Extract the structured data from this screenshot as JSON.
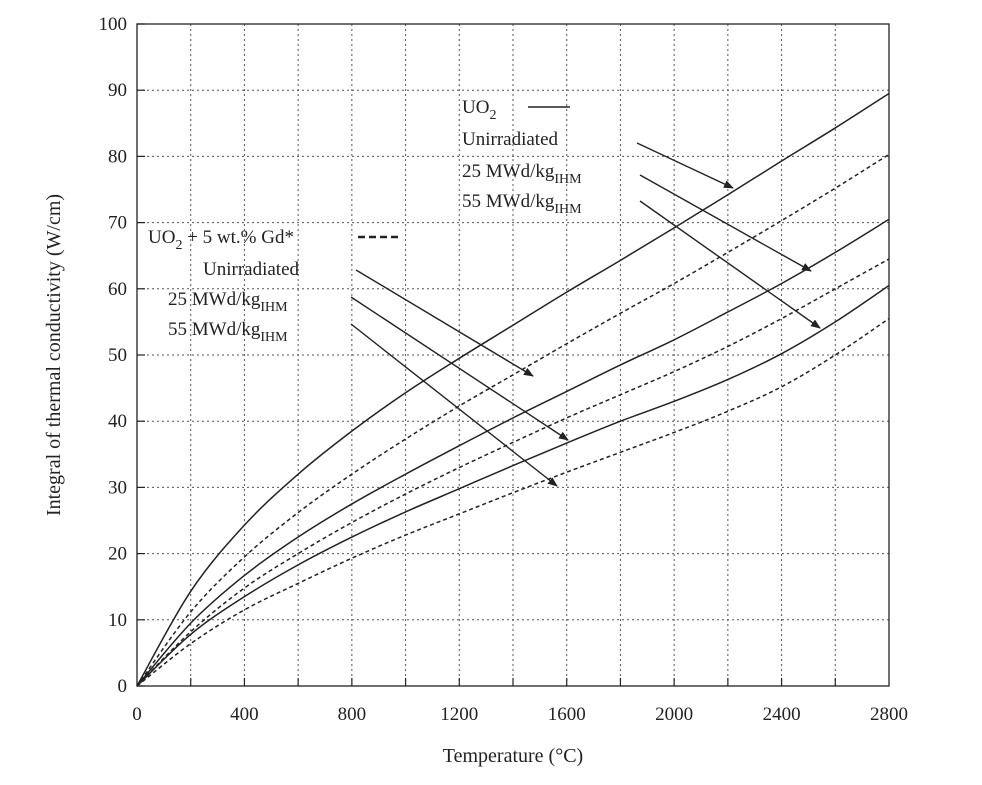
{
  "chart_data": {
    "type": "line",
    "xlabel": "Temperature (°C)",
    "ylabel": "Integral of thermal conductivity  (W/cm)",
    "xlim": [
      0,
      2800
    ],
    "ylim": [
      0,
      100
    ],
    "xticks": [
      0,
      400,
      800,
      1200,
      1600,
      2000,
      2400,
      2800
    ],
    "yticks": [
      0,
      10,
      20,
      30,
      40,
      50,
      60,
      70,
      80,
      90,
      100
    ],
    "grid": true,
    "x": [
      0,
      200,
      400,
      600,
      800,
      1000,
      1200,
      1400,
      1600,
      1800,
      2000,
      2200,
      2400,
      2600,
      2800
    ],
    "series": [
      {
        "values": [
          0,
          14.3,
          24.3,
          32.0,
          38.5,
          44.3,
          49.5,
          54.5,
          59.5,
          64.3,
          69.2,
          74.2,
          79.3,
          84.3,
          89.5
        ],
        "style": "solid"
      },
      {
        "values": [
          0,
          9.5,
          16.7,
          22.5,
          27.5,
          32.0,
          36.3,
          40.5,
          44.5,
          48.5,
          52.3,
          56.5,
          60.8,
          65.5,
          70.5
        ],
        "style": "solid"
      },
      {
        "values": [
          0,
          7.8,
          13.5,
          18.3,
          22.5,
          26.3,
          29.8,
          33.3,
          36.7,
          40.0,
          43.0,
          46.3,
          50.2,
          55.0,
          60.5
        ],
        "style": "solid"
      },
      {
        "values": [
          0,
          11.2,
          19.5,
          26.2,
          32.0,
          37.3,
          42.3,
          47.0,
          51.7,
          56.3,
          60.8,
          65.5,
          70.3,
          75.2,
          80.3
        ],
        "style": "dashed"
      },
      {
        "values": [
          0,
          8.2,
          14.8,
          20.0,
          24.7,
          29.0,
          33.0,
          36.8,
          40.5,
          44.0,
          47.5,
          51.3,
          55.5,
          60.0,
          64.5
        ],
        "style": "dashed"
      },
      {
        "values": [
          0,
          6.4,
          11.5,
          15.5,
          19.3,
          22.8,
          26.0,
          29.2,
          32.3,
          35.3,
          38.3,
          41.5,
          45.2,
          50.0,
          55.5
        ],
        "style": "dashed"
      }
    ],
    "annotations": {
      "uo2": {
        "title_base": "UO",
        "title_sub": "2",
        "entries": [
          {
            "text": "Unirradiated"
          },
          {
            "text": "25 MWd/kg",
            "sub": "IHM"
          },
          {
            "text": "55 MWd/kg",
            "sub": "IHM"
          }
        ]
      },
      "gd": {
        "title_base": "UO",
        "title_sub": "2",
        "title_rest": " + 5 wt.% Gd*",
        "entries": [
          {
            "text": "Unirradiated"
          },
          {
            "text": "25 MWd/kg",
            "sub": "IHM"
          },
          {
            "text": "55 MWd/kg",
            "sub": "IHM"
          }
        ]
      }
    }
  }
}
